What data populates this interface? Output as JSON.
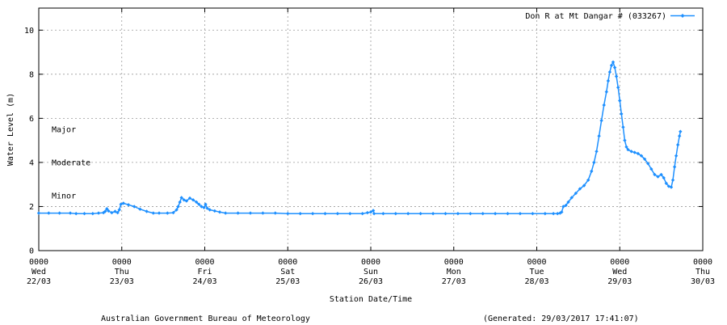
{
  "chart_data": {
    "type": "line",
    "title": "",
    "xlabel": "Station Date/Time",
    "ylabel": "Water Level (m)",
    "ylim": [
      0,
      11
    ],
    "yticks": [
      0,
      2,
      4,
      6,
      8,
      10
    ],
    "grid": true,
    "legend_position": "top-right",
    "x_unit": "days since 22/03 0000",
    "xlim": [
      0,
      8
    ],
    "xticks": [
      {
        "x": 0,
        "time": "0000",
        "day": "Wed",
        "date": "22/03"
      },
      {
        "x": 1,
        "time": "0000",
        "day": "Thu",
        "date": "23/03"
      },
      {
        "x": 2,
        "time": "0000",
        "day": "Fri",
        "date": "24/03"
      },
      {
        "x": 3,
        "time": "0000",
        "day": "Sat",
        "date": "25/03"
      },
      {
        "x": 4,
        "time": "0000",
        "day": "Sun",
        "date": "26/03"
      },
      {
        "x": 5,
        "time": "0000",
        "day": "Mon",
        "date": "27/03"
      },
      {
        "x": 6,
        "time": "0000",
        "day": "Tue",
        "date": "28/03"
      },
      {
        "x": 7,
        "time": "0000",
        "day": "Wed",
        "date": "29/03"
      },
      {
        "x": 8,
        "time": "0000",
        "day": "Thu",
        "date": "30/03"
      }
    ],
    "thresholds": [
      {
        "label": "Major",
        "value": 5.5
      },
      {
        "label": "Moderate",
        "value": 4.0
      },
      {
        "label": "Minor",
        "value": 2.5
      }
    ],
    "series": [
      {
        "name": "Don R at Mt Dangar # (033267)",
        "color": "#1e90ff",
        "points": [
          [
            0.0,
            1.7
          ],
          [
            0.12,
            1.7
          ],
          [
            0.25,
            1.7
          ],
          [
            0.38,
            1.7
          ],
          [
            0.45,
            1.68
          ],
          [
            0.55,
            1.68
          ],
          [
            0.65,
            1.68
          ],
          [
            0.72,
            1.7
          ],
          [
            0.78,
            1.72
          ],
          [
            0.8,
            1.78
          ],
          [
            0.82,
            1.9
          ],
          [
            0.84,
            1.8
          ],
          [
            0.88,
            1.72
          ],
          [
            0.92,
            1.78
          ],
          [
            0.95,
            1.72
          ],
          [
            0.97,
            1.85
          ],
          [
            0.99,
            2.1
          ],
          [
            1.02,
            2.15
          ],
          [
            1.08,
            2.08
          ],
          [
            1.15,
            2.0
          ],
          [
            1.22,
            1.88
          ],
          [
            1.3,
            1.78
          ],
          [
            1.38,
            1.7
          ],
          [
            1.45,
            1.7
          ],
          [
            1.55,
            1.7
          ],
          [
            1.62,
            1.72
          ],
          [
            1.66,
            1.85
          ],
          [
            1.68,
            2.0
          ],
          [
            1.7,
            2.2
          ],
          [
            1.72,
            2.4
          ],
          [
            1.75,
            2.3
          ],
          [
            1.78,
            2.25
          ],
          [
            1.82,
            2.38
          ],
          [
            1.86,
            2.3
          ],
          [
            1.9,
            2.2
          ],
          [
            1.93,
            2.1
          ],
          [
            1.96,
            2.0
          ],
          [
            1.99,
            1.95
          ],
          [
            2.01,
            2.1
          ],
          [
            2.03,
            1.92
          ],
          [
            2.06,
            1.85
          ],
          [
            2.12,
            1.8
          ],
          [
            2.18,
            1.75
          ],
          [
            2.25,
            1.7
          ],
          [
            2.4,
            1.7
          ],
          [
            2.55,
            1.7
          ],
          [
            2.7,
            1.7
          ],
          [
            2.85,
            1.7
          ],
          [
            3.0,
            1.68
          ],
          [
            3.15,
            1.68
          ],
          [
            3.3,
            1.68
          ],
          [
            3.45,
            1.68
          ],
          [
            3.6,
            1.68
          ],
          [
            3.75,
            1.68
          ],
          [
            3.9,
            1.68
          ],
          [
            3.96,
            1.72
          ],
          [
            4.0,
            1.75
          ],
          [
            4.03,
            1.82
          ],
          [
            4.04,
            1.68
          ],
          [
            4.15,
            1.68
          ],
          [
            4.3,
            1.68
          ],
          [
            4.45,
            1.68
          ],
          [
            4.6,
            1.68
          ],
          [
            4.75,
            1.68
          ],
          [
            4.9,
            1.68
          ],
          [
            5.05,
            1.68
          ],
          [
            5.2,
            1.68
          ],
          [
            5.35,
            1.68
          ],
          [
            5.5,
            1.68
          ],
          [
            5.65,
            1.68
          ],
          [
            5.8,
            1.68
          ],
          [
            5.95,
            1.68
          ],
          [
            6.1,
            1.68
          ],
          [
            6.2,
            1.68
          ],
          [
            6.25,
            1.68
          ],
          [
            6.28,
            1.7
          ],
          [
            6.3,
            1.75
          ],
          [
            6.32,
            2.0
          ],
          [
            6.35,
            2.05
          ],
          [
            6.38,
            2.2
          ],
          [
            6.42,
            2.4
          ],
          [
            6.47,
            2.6
          ],
          [
            6.52,
            2.8
          ],
          [
            6.57,
            2.95
          ],
          [
            6.62,
            3.2
          ],
          [
            6.66,
            3.6
          ],
          [
            6.69,
            4.0
          ],
          [
            6.72,
            4.5
          ],
          [
            6.75,
            5.2
          ],
          [
            6.78,
            5.9
          ],
          [
            6.81,
            6.6
          ],
          [
            6.84,
            7.2
          ],
          [
            6.86,
            7.7
          ],
          [
            6.88,
            8.1
          ],
          [
            6.9,
            8.4
          ],
          [
            6.92,
            8.55
          ],
          [
            6.94,
            8.3
          ],
          [
            6.96,
            7.9
          ],
          [
            6.98,
            7.4
          ],
          [
            7.0,
            6.8
          ],
          [
            7.02,
            6.2
          ],
          [
            7.04,
            5.6
          ],
          [
            7.06,
            5.0
          ],
          [
            7.08,
            4.7
          ],
          [
            7.1,
            4.58
          ],
          [
            7.14,
            4.5
          ],
          [
            7.18,
            4.45
          ],
          [
            7.22,
            4.4
          ],
          [
            7.26,
            4.3
          ],
          [
            7.3,
            4.15
          ],
          [
            7.34,
            3.95
          ],
          [
            7.38,
            3.7
          ],
          [
            7.42,
            3.45
          ],
          [
            7.46,
            3.35
          ],
          [
            7.5,
            3.45
          ],
          [
            7.53,
            3.3
          ],
          [
            7.56,
            3.05
          ],
          [
            7.59,
            2.92
          ],
          [
            7.62,
            2.88
          ],
          [
            7.64,
            3.2
          ],
          [
            7.66,
            3.8
          ],
          [
            7.68,
            4.3
          ],
          [
            7.7,
            4.8
          ],
          [
            7.72,
            5.2
          ],
          [
            7.73,
            5.4
          ]
        ]
      }
    ]
  },
  "footer": {
    "left": "Australian Government Bureau of Meteorology",
    "right": "(Generated: 29/03/2017 17:41:07)"
  }
}
